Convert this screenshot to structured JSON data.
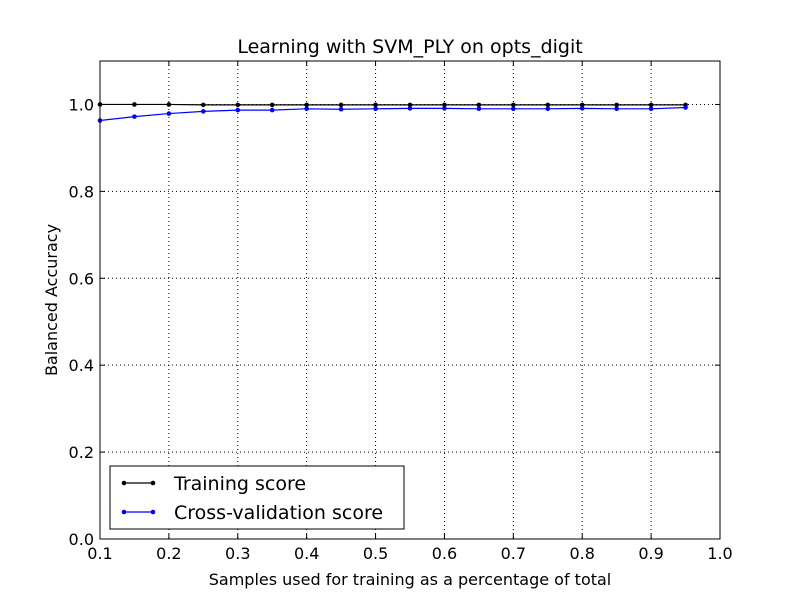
{
  "chart_data": {
    "type": "line",
    "title": "Learning with SVM_PLY on opts_digit",
    "xlabel": "Samples used for training as a percentage of total",
    "ylabel": "Balanced Accuracy",
    "xlim": [
      0.1,
      1.0
    ],
    "ylim": [
      0.0,
      1.1
    ],
    "xticks": [
      0.1,
      0.2,
      0.3,
      0.4,
      0.5,
      0.6,
      0.7,
      0.8,
      0.9,
      1.0
    ],
    "xtick_labels": [
      "0.1",
      "0.2",
      "0.3",
      "0.4",
      "0.5",
      "0.6",
      "0.7",
      "0.8",
      "0.9",
      "1.0"
    ],
    "yticks": [
      0.0,
      0.2,
      0.4,
      0.6,
      0.8,
      1.0
    ],
    "ytick_labels": [
      "0.0",
      "0.2",
      "0.4",
      "0.6",
      "0.8",
      "1.0"
    ],
    "grid": true,
    "legend": "lower-left",
    "x": [
      0.1,
      0.15,
      0.2,
      0.25,
      0.3,
      0.35,
      0.4,
      0.45,
      0.5,
      0.55,
      0.6,
      0.65,
      0.7,
      0.75,
      0.8,
      0.85,
      0.9,
      0.95
    ],
    "series": [
      {
        "name": "Training score",
        "color": "#000000",
        "values": [
          1.0,
          1.0,
          1.0,
          0.999,
          0.999,
          0.999,
          0.999,
          0.999,
          0.999,
          0.999,
          0.999,
          0.999,
          0.999,
          0.999,
          0.999,
          0.999,
          0.999,
          0.999
        ]
      },
      {
        "name": "Cross-validation score",
        "color": "#0000ff",
        "values": [
          0.963,
          0.972,
          0.979,
          0.984,
          0.987,
          0.987,
          0.99,
          0.989,
          0.99,
          0.991,
          0.991,
          0.99,
          0.99,
          0.99,
          0.991,
          0.99,
          0.99,
          0.993
        ]
      }
    ]
  }
}
